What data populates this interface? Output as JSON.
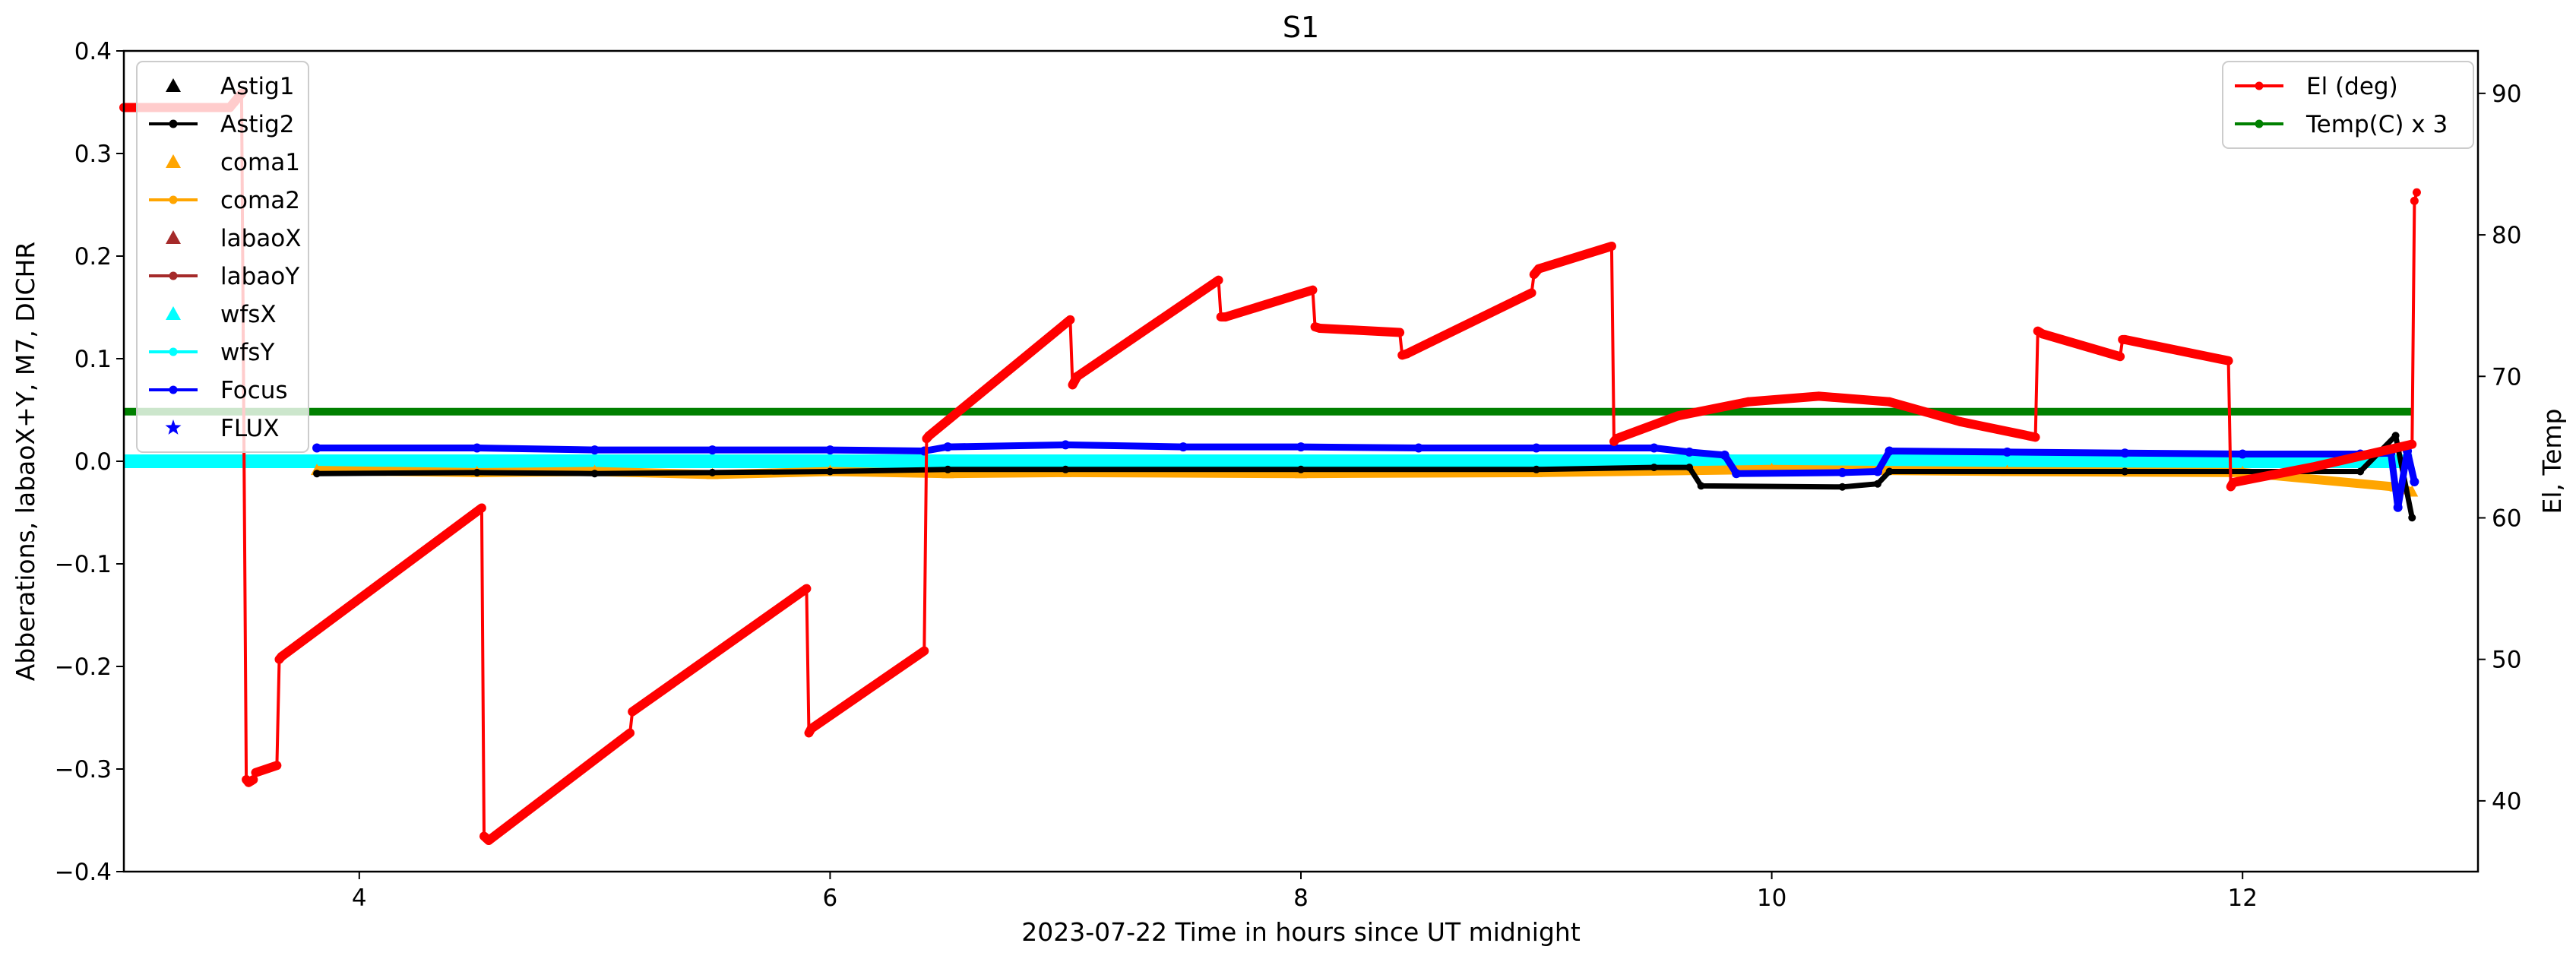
{
  "chart_data": {
    "type": "line",
    "title": "S1",
    "xlabel": "2023-07-22  Time in hours since UT midnight",
    "ylabel_left": "Abberations, labaoX+Y, M7, DICHR",
    "ylabel_right": "El, Temp",
    "xlim": [
      3.0,
      13.0
    ],
    "ylim_left": [
      -0.4,
      0.4
    ],
    "ylim_right": [
      35,
      93
    ],
    "x_ticks": [
      4,
      6,
      8,
      10,
      12
    ],
    "y_ticks_left": [
      -0.4,
      -0.3,
      -0.2,
      -0.1,
      0.0,
      0.1,
      0.2,
      0.3,
      0.4
    ],
    "y_ticks_left_labels": [
      "−0.4",
      "−0.3",
      "−0.2",
      "−0.1",
      "0.0",
      "0.1",
      "0.2",
      "0.3",
      "0.4"
    ],
    "y_ticks_right": [
      40,
      50,
      60,
      70,
      80,
      90
    ],
    "grid": false,
    "legend_left_placement": "upper-left",
    "legend_right_placement": "upper-right",
    "legend_left": [
      {
        "label": "Astig1",
        "color": "#000000",
        "marker": "triangle",
        "line": false
      },
      {
        "label": "Astig2",
        "color": "#000000",
        "marker": "dot",
        "line": true
      },
      {
        "label": "coma1",
        "color": "#ffa500",
        "marker": "triangle",
        "line": false
      },
      {
        "label": "coma2",
        "color": "#ffa500",
        "marker": "dot",
        "line": true
      },
      {
        "label": "labaoX",
        "color": "#a52a2a",
        "marker": "triangle",
        "line": false
      },
      {
        "label": "labaoY",
        "color": "#a52a2a",
        "marker": "dot",
        "line": true
      },
      {
        "label": "wfsX",
        "color": "#00ffff",
        "marker": "triangle",
        "line": false
      },
      {
        "label": "wfsY",
        "color": "#00ffff",
        "marker": "dot",
        "line": true
      },
      {
        "label": "Focus",
        "color": "#0000ff",
        "marker": "dot",
        "line": true
      },
      {
        "label": "FLUX",
        "color": "#0000ff",
        "marker": "star",
        "line": false
      }
    ],
    "legend_right": [
      {
        "label": "El (deg)",
        "color": "#ff0000",
        "marker": "dot",
        "line": true
      },
      {
        "label": "Temp(C) x 3",
        "color": "#008000",
        "marker": "dot",
        "line": true
      }
    ],
    "series": [
      {
        "name": "El (deg)",
        "axis": "right",
        "color": "#ff0000",
        "x": [
          3.0,
          3.45,
          3.5,
          3.52,
          3.53,
          3.54,
          3.55,
          3.56,
          3.65,
          3.66,
          3.67,
          4.52,
          4.53,
          4.55,
          5.15,
          5.16,
          5.9,
          5.91,
          5.92,
          6.4,
          6.41,
          6.42,
          7.02,
          7.03,
          7.05,
          7.65,
          7.66,
          7.68,
          8.05,
          8.06,
          8.08,
          8.42,
          8.43,
          8.45,
          8.98,
          8.99,
          9.01,
          9.32,
          9.33,
          9.34,
          9.6,
          9.9,
          10.2,
          10.5,
          10.8,
          11.12,
          11.13,
          11.15,
          11.48,
          11.49,
          11.5,
          11.94,
          11.95,
          11.96,
          12.3,
          12.72,
          12.73,
          12.74
        ],
        "y": [
          89.0,
          89.0,
          90.0,
          41.5,
          41.3,
          41.4,
          41.5,
          42.0,
          42.5,
          50.0,
          50.2,
          60.7,
          37.5,
          37.2,
          44.8,
          46.3,
          55.0,
          44.8,
          45.1,
          50.6,
          65.6,
          65.8,
          74.0,
          69.4,
          70.0,
          76.8,
          74.2,
          74.2,
          76.1,
          73.5,
          73.4,
          73.1,
          71.5,
          71.6,
          75.9,
          77.2,
          77.6,
          79.2,
          65.4,
          65.6,
          67.2,
          68.2,
          68.6,
          68.2,
          66.8,
          65.7,
          73.2,
          73.0,
          71.4,
          72.6,
          72.6,
          71.1,
          62.2,
          62.5,
          63.6,
          65.2,
          82.4,
          83.0
        ]
      },
      {
        "name": "Temp(C) x 3",
        "axis": "right",
        "color": "#008000",
        "x": [
          3.0,
          12.72
        ],
        "y": [
          67.5,
          67.5
        ]
      },
      {
        "name": "Focus",
        "axis": "left",
        "color": "#0000ff",
        "x": [
          3.82,
          4.5,
          5.0,
          5.5,
          6.0,
          6.4,
          6.5,
          7.0,
          7.5,
          8.0,
          8.5,
          9.0,
          9.5,
          9.65,
          9.8,
          9.85,
          10.3,
          10.45,
          10.5,
          11.0,
          11.5,
          12.0,
          12.5,
          12.63,
          12.66,
          12.7,
          12.73
        ],
        "y": [
          0.013,
          0.013,
          0.011,
          0.011,
          0.011,
          0.01,
          0.014,
          0.016,
          0.014,
          0.014,
          0.013,
          0.013,
          0.013,
          0.009,
          0.006,
          -0.012,
          -0.011,
          -0.01,
          0.01,
          0.009,
          0.008,
          0.007,
          0.007,
          0.008,
          -0.045,
          0.01,
          -0.02
        ]
      },
      {
        "name": "Astig2",
        "axis": "left",
        "color": "#000000",
        "x": [
          3.82,
          4.5,
          5.0,
          5.5,
          6.0,
          6.5,
          7.0,
          8.0,
          9.0,
          9.5,
          9.65,
          9.7,
          10.3,
          10.45,
          10.5,
          11.5,
          12.5,
          12.65,
          12.72
        ],
        "y": [
          -0.012,
          -0.011,
          -0.012,
          -0.011,
          -0.01,
          -0.008,
          -0.008,
          -0.008,
          -0.008,
          -0.006,
          -0.006,
          -0.024,
          -0.025,
          -0.022,
          -0.01,
          -0.01,
          -0.01,
          0.025,
          -0.055
        ]
      },
      {
        "name": "coma2",
        "axis": "left",
        "color": "#ffa500",
        "x": [
          3.82,
          4.5,
          5.0,
          5.5,
          6.0,
          6.5,
          7.0,
          8.0,
          9.0,
          10.0,
          11.0,
          12.0,
          12.65,
          12.72
        ],
        "y": [
          -0.009,
          -0.011,
          -0.01,
          -0.013,
          -0.01,
          -0.012,
          -0.011,
          -0.012,
          -0.011,
          -0.008,
          -0.01,
          -0.011,
          -0.025,
          -0.03
        ]
      },
      {
        "name": "wfsY",
        "axis": "left",
        "color": "#00ffff",
        "x": [
          3.0,
          12.72
        ],
        "y": [
          0.0,
          0.0
        ]
      }
    ]
  }
}
